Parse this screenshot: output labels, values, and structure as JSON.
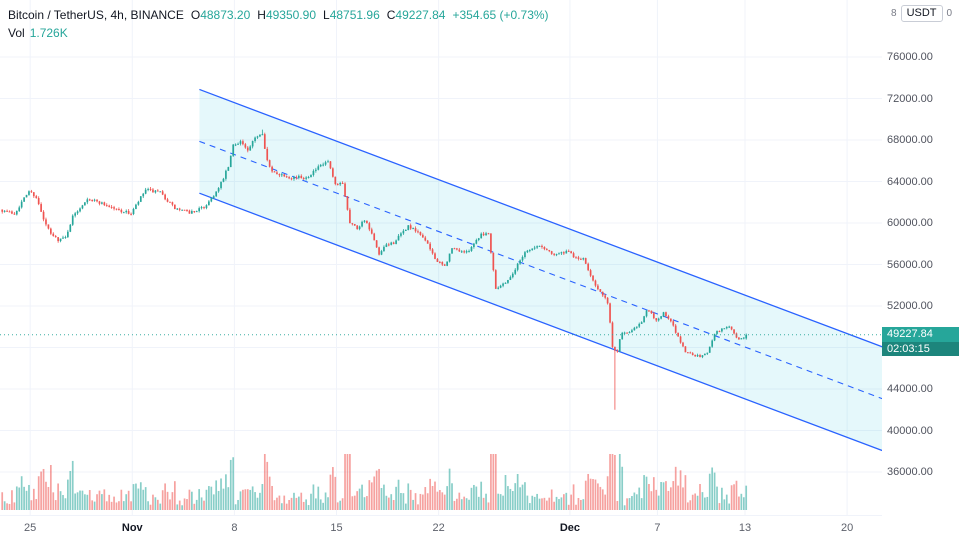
{
  "legend": {
    "title": "Bitcoin / TetherUS, 4h, BINANCE",
    "o_label": "O",
    "open": "48873.20",
    "h_label": "H",
    "high": "49350.90",
    "l_label": "L",
    "low": "48751.96",
    "c_label": "C",
    "close": "49227.84",
    "change": "+354.65 (+0.73%)",
    "vol_label": "Vol",
    "vol_value": "1.726K"
  },
  "price_axis": {
    "corner_left": "8",
    "currency": "USDT",
    "corner_right": "0",
    "badge": {
      "price": "49227.84",
      "countdown": "02:03:15"
    }
  },
  "colors": {
    "up": "#26a69a",
    "down": "#ef5350",
    "vol_up": "rgba(38,166,154,0.55)",
    "vol_down": "rgba(239,83,80,0.55)",
    "grid": "#f0f3fa",
    "axis_text": "#50535e",
    "channel_line": "#2962ff",
    "channel_fill": "rgba(0,188,212,0.10)",
    "badge_bg": "#26a69a",
    "countdown_bg": "#1d857c",
    "last_price_line": "#26a69a"
  },
  "chart_data": {
    "type": "candlestick",
    "pair": "Bitcoin / TetherUS",
    "exchange": "BINANCE",
    "interval": "4h",
    "last": {
      "open": 48873.2,
      "high": 49350.9,
      "low": 48751.96,
      "close": 49227.84,
      "change": "+354.65",
      "change_pct": "+0.73%"
    },
    "volume_display": "1.726K",
    "current_price": 49227.84,
    "countdown": "02:03:15",
    "y_ticks": [
      76000,
      72000,
      68000,
      64000,
      60000,
      56000,
      52000,
      48000,
      44000,
      40000,
      36000
    ],
    "x_ticks": [
      {
        "label": "25",
        "day": 2,
        "emph": false
      },
      {
        "label": "Nov",
        "day": 9,
        "emph": true
      },
      {
        "label": "8",
        "day": 16,
        "emph": false
      },
      {
        "label": "15",
        "day": 23,
        "emph": false
      },
      {
        "label": "22",
        "day": 30,
        "emph": false
      },
      {
        "label": "Dec",
        "day": 39,
        "emph": true
      },
      {
        "label": "7",
        "day": 45,
        "emph": false
      },
      {
        "label": "13",
        "day": 51,
        "emph": false
      },
      {
        "label": "20",
        "day": 58,
        "emph": false
      }
    ],
    "price_path": [
      [
        0,
        61300
      ],
      [
        1,
        60900
      ],
      [
        2,
        63100
      ],
      [
        2.5,
        62500
      ],
      [
        3,
        60300
      ],
      [
        3.5,
        58900
      ],
      [
        4,
        58400
      ],
      [
        4.5,
        58600
      ],
      [
        5,
        60600
      ],
      [
        6,
        62400
      ],
      [
        7,
        61900
      ],
      [
        8,
        61300
      ],
      [
        9,
        60900
      ],
      [
        10,
        63200
      ],
      [
        11,
        62900
      ],
      [
        12,
        61400
      ],
      [
        13,
        61000
      ],
      [
        14,
        61500
      ],
      [
        15,
        63300
      ],
      [
        15.7,
        65500
      ],
      [
        16,
        67500
      ],
      [
        16.5,
        67900
      ],
      [
        17,
        66900
      ],
      [
        17.6,
        68400
      ],
      [
        18,
        68700
      ],
      [
        18.3,
        66200
      ],
      [
        18.6,
        64900
      ],
      [
        19,
        64800
      ],
      [
        20,
        64400
      ],
      [
        21,
        64400
      ],
      [
        22,
        65500
      ],
      [
        22.5,
        65900
      ],
      [
        23,
        63600
      ],
      [
        23.5,
        63900
      ],
      [
        24,
        60100
      ],
      [
        24.5,
        59500
      ],
      [
        25,
        60350
      ],
      [
        25.5,
        58900
      ],
      [
        26,
        56900
      ],
      [
        26.5,
        57900
      ],
      [
        27,
        58100
      ],
      [
        28,
        59700
      ],
      [
        29,
        58700
      ],
      [
        30,
        56250
      ],
      [
        30.5,
        55800
      ],
      [
        31,
        57550
      ],
      [
        32,
        57150
      ],
      [
        33,
        58950
      ],
      [
        33.5,
        59000
      ],
      [
        34,
        53750
      ],
      [
        34.4,
        54000
      ],
      [
        35,
        54750
      ],
      [
        36,
        57250
      ],
      [
        37,
        57800
      ],
      [
        38,
        57000
      ],
      [
        39,
        57200
      ],
      [
        39.5,
        56600
      ],
      [
        40,
        56500
      ],
      [
        40.5,
        55000
      ],
      [
        41,
        53600
      ],
      [
        41.7,
        52300
      ],
      [
        42,
        48000
      ],
      [
        42.3,
        47500
      ],
      [
        42.6,
        49500
      ],
      [
        43,
        49400
      ],
      [
        44,
        50500
      ],
      [
        44.4,
        51700
      ],
      [
        45,
        50600
      ],
      [
        45.5,
        51300
      ],
      [
        46,
        50500
      ],
      [
        46.5,
        49000
      ],
      [
        47,
        47600
      ],
      [
        48,
        47100
      ],
      [
        48.5,
        47500
      ],
      [
        49,
        49400
      ],
      [
        50,
        50100
      ],
      [
        50.5,
        48900
      ],
      [
        51,
        48873
      ],
      [
        51.2,
        49228
      ]
    ],
    "wick_events": [
      {
        "day": 17.95,
        "high": 69000
      },
      {
        "day": 42.05,
        "low": 42000
      }
    ],
    "volume_spikes": [
      {
        "day": 3.4,
        "h": 45
      },
      {
        "day": 6.1,
        "h": 20
      },
      {
        "day": 9.7,
        "h": 18
      },
      {
        "day": 15.8,
        "h": 22
      },
      {
        "day": 17.9,
        "h": 26
      },
      {
        "day": 18.2,
        "h": 22
      },
      {
        "day": 23.9,
        "h": 30
      },
      {
        "day": 26.0,
        "h": 22
      },
      {
        "day": 30.1,
        "h": 20
      },
      {
        "day": 34.5,
        "h": 35
      },
      {
        "day": 35.2,
        "h": 25
      },
      {
        "day": 40.5,
        "h": 22
      },
      {
        "day": 41.6,
        "h": 24
      },
      {
        "day": 42.05,
        "h": 55
      },
      {
        "day": 42.4,
        "h": 35
      },
      {
        "day": 44.4,
        "h": 26
      },
      {
        "day": 45.2,
        "h": 28
      },
      {
        "day": 47.9,
        "h": 26
      },
      {
        "day": 49.0,
        "h": 20
      },
      {
        "day": 51.05,
        "h": 20
      }
    ],
    "channel": {
      "type": "parallel_channel",
      "median_start": {
        "day": 13.6,
        "price": 67872
      },
      "median_end": {
        "day": 60.4,
        "price": 43068
      },
      "half_width": 5000,
      "median_dashed": true
    }
  }
}
